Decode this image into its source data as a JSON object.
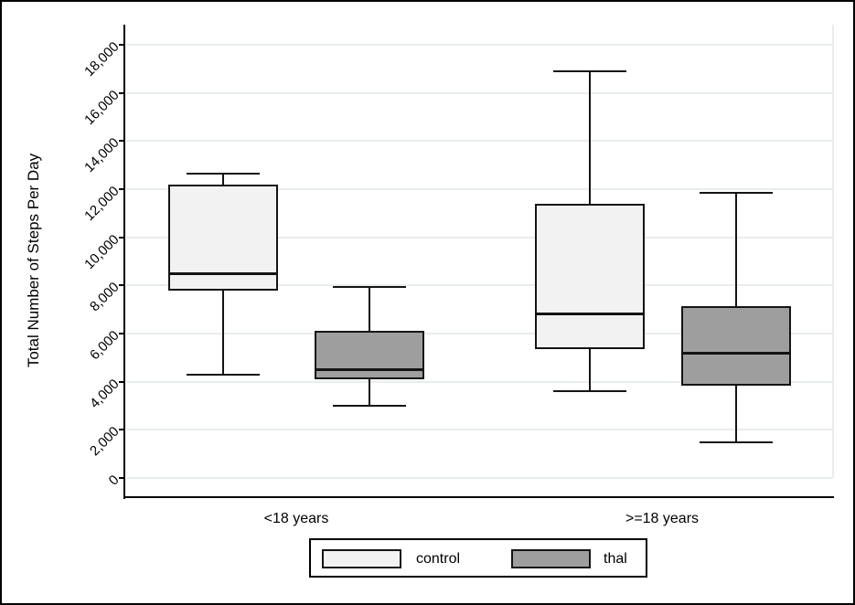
{
  "colors": {
    "background": "#ffffff",
    "figure_border": "#000000",
    "axis_line": "#000000",
    "box_line": "#141414",
    "gridline": "#e8eee8",
    "control_fill": "#f2f2f2",
    "thal_fill": "#9e9e9e"
  },
  "chart_data": {
    "type": "boxplot",
    "ylabel": "Total Number of Steps Per Day",
    "ylim": [
      0,
      18000
    ],
    "yticks": [
      0,
      2000,
      4000,
      6000,
      8000,
      10000,
      12000,
      14000,
      16000,
      18000
    ],
    "ytick_labels": [
      "0",
      "2,000",
      "4,000",
      "6,000",
      "8,000",
      "10,000",
      "12,000",
      "14,000",
      "16,000",
      "18,000"
    ],
    "grid": true,
    "legend_position": "bottom-center",
    "groups": [
      "<18 years",
      ">=18 years"
    ],
    "series": [
      {
        "name": "control",
        "fill": "#f2f2f2",
        "boxes": [
          {
            "group": "<18 years",
            "whisker_low": 4300,
            "q1": 7800,
            "median": 8500,
            "q3": 12200,
            "whisker_high": 12650
          },
          {
            "group": ">=18 years",
            "whisker_low": 3600,
            "q1": 5350,
            "median": 6800,
            "q3": 11400,
            "whisker_high": 16900
          }
        ]
      },
      {
        "name": "thal",
        "fill": "#9e9e9e",
        "boxes": [
          {
            "group": "<18 years",
            "whisker_low": 3000,
            "q1": 4100,
            "median": 4500,
            "q3": 6100,
            "whisker_high": 7950
          },
          {
            "group": ">=18 years",
            "whisker_low": 1500,
            "q1": 3850,
            "median": 5200,
            "q3": 7150,
            "whisker_high": 11850
          }
        ]
      }
    ]
  }
}
